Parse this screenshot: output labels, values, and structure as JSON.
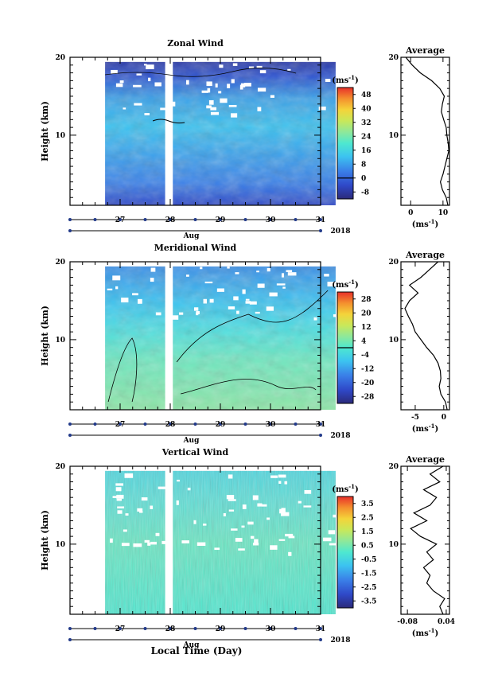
{
  "figure": {
    "xlabel": "Local Time (Day)",
    "month_label": "Aug",
    "year_label": "2018"
  },
  "chart_data": [
    {
      "type": "heatmap",
      "title": "Zonal Wind",
      "ylabel": "Height (km)",
      "ylim": [
        1,
        20
      ],
      "yticks": [
        "10",
        "20"
      ],
      "xlim": [
        26.0,
        31.0
      ],
      "x_ticks": [
        "27",
        "28",
        "29",
        "30",
        "31"
      ],
      "x_data_range": [
        26.7,
        31.3
      ],
      "gap": [
        27.9,
        28.05
      ],
      "unit_label": "(ms",
      "unit_exp": "-1",
      "unit_close": ")",
      "colorbar_ticks": [
        "48",
        "40",
        "32",
        "24",
        "16",
        "8",
        "0",
        "-8"
      ],
      "colorbar_range": [
        -12,
        52
      ],
      "zero_line": 0,
      "avg": {
        "title": "Average",
        "unit_label": "(ms",
        "unit_exp": "-1",
        "unit_close": ")",
        "xlim": [
          -3,
          12
        ],
        "xticks": [
          "0",
          "10"
        ],
        "xtick_values": [
          0,
          10
        ],
        "profile": [
          [
            11.5,
            1
          ],
          [
            11.0,
            2
          ],
          [
            9.8,
            3
          ],
          [
            9.2,
            4
          ],
          [
            10.0,
            5
          ],
          [
            10.6,
            6
          ],
          [
            11.2,
            7
          ],
          [
            11.8,
            8
          ],
          [
            11.6,
            9
          ],
          [
            11.2,
            10
          ],
          [
            11.0,
            11
          ],
          [
            10.2,
            12
          ],
          [
            9.5,
            13
          ],
          [
            9.8,
            14
          ],
          [
            10.4,
            15
          ],
          [
            9.0,
            16
          ],
          [
            6.5,
            17
          ],
          [
            3.0,
            18
          ],
          [
            0.5,
            19
          ],
          [
            -1.5,
            20
          ]
        ]
      }
    },
    {
      "type": "heatmap",
      "title": "Meridional Wind",
      "ylabel": "Height (km)",
      "ylim": [
        1,
        20
      ],
      "yticks": [
        "10",
        "20"
      ],
      "xlim": [
        26.0,
        31.0
      ],
      "x_ticks": [
        "27",
        "28",
        "29",
        "30",
        "31"
      ],
      "x_data_range": [
        26.7,
        31.3
      ],
      "gap": [
        27.9,
        28.05
      ],
      "unit_label": "(ms",
      "unit_exp": "-1",
      "unit_close": ")",
      "colorbar_ticks": [
        "28",
        "20",
        "12",
        "4",
        "-4",
        "-12",
        "-20",
        "-28"
      ],
      "colorbar_range": [
        -32,
        32
      ],
      "zero_line": 0,
      "avg": {
        "title": "Average",
        "unit_label": "(ms",
        "unit_exp": "-1",
        "unit_close": ")",
        "xlim": [
          -7.5,
          1
        ],
        "xticks": [
          "-5",
          "0"
        ],
        "xtick_values": [
          -5,
          0
        ],
        "profile": [
          [
            0.6,
            1
          ],
          [
            0.3,
            2
          ],
          [
            -0.5,
            3
          ],
          [
            -0.8,
            4
          ],
          [
            -0.5,
            5
          ],
          [
            -0.6,
            6
          ],
          [
            -1.0,
            7
          ],
          [
            -1.8,
            8
          ],
          [
            -3.0,
            9
          ],
          [
            -4.0,
            10
          ],
          [
            -5.0,
            11
          ],
          [
            -5.5,
            12
          ],
          [
            -6.2,
            13
          ],
          [
            -6.8,
            14
          ],
          [
            -6.0,
            15
          ],
          [
            -4.5,
            16
          ],
          [
            -6.0,
            17
          ],
          [
            -4.0,
            18
          ],
          [
            -2.5,
            19
          ],
          [
            -1.0,
            20
          ]
        ]
      }
    },
    {
      "type": "heatmap",
      "title": "Vertical Wind",
      "ylabel": "Height (km)",
      "ylim": [
        1,
        20
      ],
      "yticks": [
        "10",
        "20"
      ],
      "xlim": [
        26.0,
        31.0
      ],
      "x_ticks": [
        "27",
        "28",
        "29",
        "30",
        "31"
      ],
      "x_data_range": [
        26.7,
        31.3
      ],
      "gap": [
        27.9,
        28.05
      ],
      "unit_label": "(ms",
      "unit_exp": "-1",
      "unit_close": ")",
      "colorbar_ticks": [
        "3.5",
        "2.5",
        "1.5",
        "0.5",
        "-0.5",
        "-1.5",
        "-2.5",
        "-3.5"
      ],
      "colorbar_range": [
        -4,
        4
      ],
      "zero_line": null,
      "avg": {
        "title": "Average",
        "unit_label": "(ms",
        "unit_exp": "-1",
        "unit_close": ")",
        "xlim": [
          -0.1,
          0.05
        ],
        "xticks": [
          "-0.08",
          "0.04"
        ],
        "xtick_values": [
          -0.08,
          0.04
        ],
        "profile": [
          [
            0.03,
            1
          ],
          [
            0.02,
            2
          ],
          [
            0.035,
            3
          ],
          [
            0.0,
            4
          ],
          [
            -0.02,
            5
          ],
          [
            -0.01,
            6
          ],
          [
            -0.03,
            7
          ],
          [
            0.0,
            8
          ],
          [
            -0.02,
            9
          ],
          [
            0.01,
            10
          ],
          [
            -0.04,
            11
          ],
          [
            -0.07,
            12
          ],
          [
            -0.02,
            13
          ],
          [
            -0.06,
            14
          ],
          [
            -0.01,
            15
          ],
          [
            0.01,
            16
          ],
          [
            -0.03,
            17
          ],
          [
            0.02,
            18
          ],
          [
            -0.01,
            19
          ],
          [
            0.03,
            20
          ]
        ]
      }
    }
  ]
}
